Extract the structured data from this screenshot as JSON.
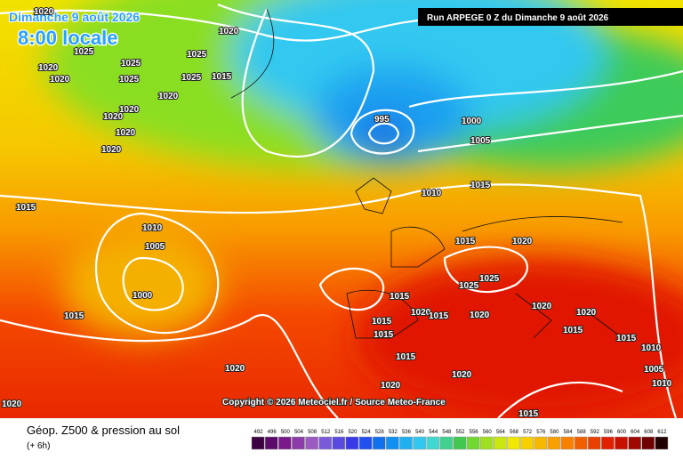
{
  "header": {
    "date": "Dimanche 9 août 2026",
    "time": "8:00 locale",
    "run": "Run ARPEGE 0 Z du Dimanche 9 août 2026"
  },
  "copyright": "Copyright © 2026 Meteociel.fr / Source Meteo-France",
  "footer": {
    "title": "Géop. Z500 & pression au sol",
    "subtitle": "(+ 6h)"
  },
  "isobar_labels": [
    "1020",
    "1020",
    "1025",
    "1020",
    "1020",
    "1025",
    "1025",
    "1025",
    "1025",
    "1015",
    "1020",
    "1020",
    "1020",
    "1020",
    "1020",
    "995",
    "1000",
    "1005",
    "1010",
    "1015",
    "1015",
    "1010",
    "1005",
    "1000",
    "1015",
    "1015",
    "1020",
    "1025",
    "1025",
    "1015",
    "1015",
    "1020",
    "1015",
    "1020",
    "1020",
    "1020",
    "1015",
    "1015",
    "1010",
    "1015",
    "1015",
    "1020",
    "1020",
    "1005",
    "1010",
    "1020",
    "1015",
    "1020"
  ],
  "legend": {
    "values": [
      492,
      496,
      500,
      504,
      508,
      512,
      516,
      520,
      524,
      528,
      532,
      536,
      540,
      544,
      548,
      552,
      556,
      560,
      564,
      568,
      572,
      576,
      580,
      584,
      588,
      592,
      596,
      600,
      604,
      608,
      612
    ],
    "colors": [
      "#3a0040",
      "#5a0a6a",
      "#7a1a8a",
      "#8c3aa8",
      "#9a5ac0",
      "#7a5ad8",
      "#5a4ae0",
      "#3a3ae8",
      "#2050f0",
      "#1070f0",
      "#1090f0",
      "#20b0f0",
      "#30c8f0",
      "#40d8d0",
      "#40d090",
      "#40c850",
      "#70d830",
      "#a0e020",
      "#c8e810",
      "#f0e800",
      "#f8d000",
      "#f8b800",
      "#f8a000",
      "#f88000",
      "#f06000",
      "#e84000",
      "#e02000",
      "#c81000",
      "#a00800",
      "#700000",
      "#200000"
    ]
  }
}
